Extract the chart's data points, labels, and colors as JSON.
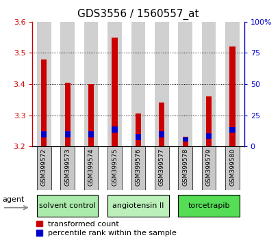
{
  "title": "GDS3556 / 1560557_at",
  "samples": [
    "GSM399572",
    "GSM399573",
    "GSM399574",
    "GSM399575",
    "GSM399576",
    "GSM399577",
    "GSM399578",
    "GSM399579",
    "GSM399580"
  ],
  "red_tops": [
    3.48,
    3.405,
    3.4,
    3.55,
    3.305,
    3.34,
    3.23,
    3.36,
    3.52
  ],
  "blue_bottoms": [
    3.228,
    3.228,
    3.228,
    3.245,
    3.22,
    3.228,
    3.215,
    3.225,
    3.245
  ],
  "blue_tops": [
    3.248,
    3.248,
    3.248,
    3.263,
    3.24,
    3.248,
    3.228,
    3.242,
    3.262
  ],
  "bar_baseline": 3.2,
  "ylim": [
    3.2,
    3.6
  ],
  "yticks_left": [
    3.2,
    3.3,
    3.4,
    3.5,
    3.6
  ],
  "yticks_right": [
    0,
    25,
    50,
    75,
    100
  ],
  "bar_width": 0.6,
  "groups": [
    {
      "label": "solvent control",
      "indices": [
        0,
        1,
        2
      ],
      "color": "#aaeaaa"
    },
    {
      "label": "angiotensin II",
      "indices": [
        3,
        4,
        5
      ],
      "color": "#bbf0bb"
    },
    {
      "label": "torcetrapib",
      "indices": [
        6,
        7,
        8
      ],
      "color": "#55dd55"
    }
  ],
  "agent_label": "agent",
  "red_color": "#cc0000",
  "blue_color": "#0000cc",
  "bar_bg_color": "#d0d0d0",
  "tick_label_bg": "#c8c8c8",
  "title_fontsize": 11,
  "tick_fontsize": 8,
  "label_fontsize": 8,
  "legend_fontsize": 8
}
